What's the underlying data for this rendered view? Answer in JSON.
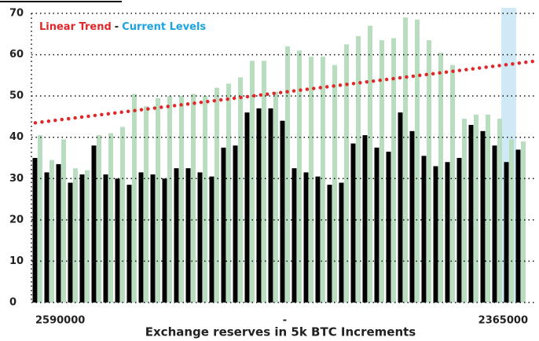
{
  "chart_data": {
    "type": "bar",
    "xlabel": "Exchange reserves in 5k BTC Increments",
    "categories": [
      "2590000",
      null,
      null,
      null,
      null,
      null,
      null,
      null,
      null,
      null,
      null,
      null,
      null,
      null,
      null,
      null,
      null,
      null,
      null,
      null,
      null,
      "-",
      null,
      null,
      null,
      null,
      null,
      null,
      null,
      null,
      null,
      null,
      null,
      null,
      null,
      null,
      null,
      null,
      null,
      null,
      null,
      "2365000"
    ],
    "series": [
      {
        "color": "#000000",
        "values": [
          35,
          31.5,
          33.5,
          29,
          31,
          38,
          31,
          30,
          28.5,
          31.5,
          31,
          30,
          32.5,
          32.5,
          31.5,
          30.5,
          37.5,
          38,
          46,
          47,
          47,
          44,
          32.5,
          31.5,
          30.5,
          28.5,
          29,
          38.5,
          40.5,
          37.5,
          36.5,
          46,
          41.5,
          35.5,
          33,
          34,
          35,
          43,
          41.5,
          38,
          34,
          37
        ]
      },
      {
        "color": "#b8ddbf",
        "values": [
          40.5,
          34.5,
          39.5,
          32.5,
          32,
          40.5,
          41,
          42.5,
          50.5,
          47.5,
          49.5,
          50,
          50,
          50.5,
          50,
          52,
          53,
          54.5,
          58.5,
          58.5,
          51,
          62,
          61,
          59.5,
          59.5,
          57.5,
          62.5,
          64.5,
          67,
          63.5,
          64,
          69,
          68.5,
          63.5,
          60.5,
          57.5,
          44.5,
          45.5,
          45.5,
          44.5,
          39.5,
          39
        ]
      }
    ],
    "trend": {
      "name": "Linear Trend",
      "color": "#e0282a",
      "start": 43.5,
      "end": 58.5
    },
    "separator": "-",
    "highlight": {
      "name": "Current Levels",
      "color": "#1aa3e0",
      "fill": "#cfe9f7",
      "index": 40
    },
    "ylim": [
      0,
      70
    ],
    "yticks": [
      0,
      10,
      20,
      30,
      40,
      50,
      60,
      70
    ],
    "grid": true
  }
}
